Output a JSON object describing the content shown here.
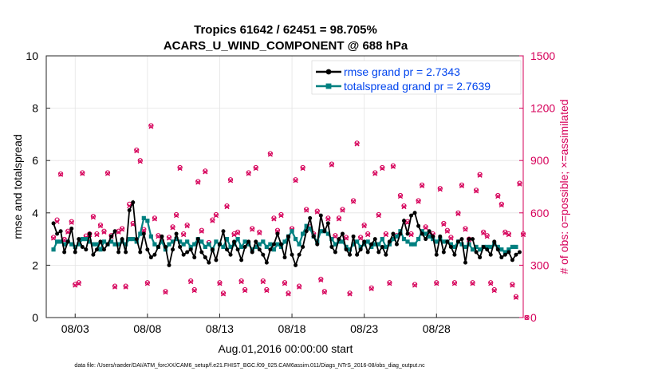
{
  "chart_data": {
    "type": "line",
    "title": [
      "Tropics 61642 / 62451 = 98.705%",
      "ACARS_U_WIND_COMPONENT @ 688 hPa"
    ],
    "xlabel": "Aug.01,2016 00:00:00 start",
    "ylabel_left": "rmse and totalspread",
    "ylabel_right": "# of obs: o=possible; ×=assimilated",
    "xlim": [
      0,
      33
    ],
    "ylim_left": [
      0,
      10
    ],
    "ylim_right": [
      0,
      1500
    ],
    "xticks": [
      2,
      7,
      12,
      17,
      22,
      27
    ],
    "xtick_labels": [
      "08/03",
      "08/08",
      "08/13",
      "08/18",
      "08/23",
      "08/28"
    ],
    "yticks_left": [
      "0",
      "2",
      "4",
      "6",
      "8",
      "10"
    ],
    "yticks_right": [
      "0",
      "300",
      "600",
      "900",
      "1200",
      "1500"
    ],
    "legend": [
      "rmse grand pr = 2.7343",
      "totalspread grand pr = 2.7639"
    ],
    "legend_position": "top-right",
    "grid": true,
    "colors": {
      "rmse": "#000000",
      "spread": "#008080",
      "obs": "#d6005a",
      "legend_text": "#0044ee"
    },
    "series": [
      {
        "name": "rmse",
        "values": [
          3.6,
          3.2,
          3.3,
          2.5,
          2.9,
          3.4,
          2.5,
          3.0,
          2.7,
          2.6,
          3.2,
          2.4,
          2.6,
          2.9,
          2.6,
          2.8,
          3.1,
          3.3,
          2.5,
          3.0,
          2.5,
          4.1,
          4.4,
          3.0,
          2.5,
          3.2,
          2.6,
          2.3,
          2.4,
          2.7,
          3.1,
          2.7,
          2.0,
          2.6,
          3.2,
          2.7,
          2.4,
          2.5,
          2.6,
          2.3,
          3.0,
          2.5,
          2.3,
          2.1,
          2.6,
          2.2,
          2.8,
          3.3,
          2.6,
          2.4,
          2.9,
          2.6,
          2.2,
          2.7,
          2.9,
          2.5,
          2.9,
          2.6,
          2.4,
          2.1,
          2.6,
          2.8,
          3.2,
          2.8,
          2.3,
          3.1,
          2.4,
          2.0,
          2.4,
          2.7,
          3.3,
          3.8,
          3.1,
          2.8,
          3.9,
          3.3,
          3.6,
          2.7,
          2.5,
          3.0,
          3.2,
          2.6,
          2.4,
          3.1,
          2.4,
          2.6,
          2.9,
          2.5,
          2.8,
          3.0,
          2.5,
          2.7,
          2.4,
          2.9,
          3.2,
          2.8,
          3.2,
          3.7,
          3.2,
          3.9,
          4.0,
          3.5,
          3.2,
          3.0,
          3.3,
          3.1,
          2.4,
          3.1,
          2.5,
          2.9,
          2.7,
          2.4,
          2.9,
          3.0,
          2.1,
          3.0,
          3.0,
          2.5,
          2.3,
          2.7,
          2.6,
          2.4,
          2.9,
          2.6,
          2.3,
          2.4,
          2.5,
          2.2,
          2.4,
          2.5
        ]
      },
      {
        "name": "totalspread",
        "values": [
          2.6,
          2.9,
          2.9,
          2.8,
          2.9,
          2.8,
          2.7,
          2.8,
          3.0,
          3.0,
          2.9,
          2.8,
          2.8,
          2.6,
          2.9,
          2.8,
          2.9,
          2.8,
          2.8,
          2.9,
          2.8,
          3.0,
          3.0,
          2.9,
          3.2,
          3.8,
          3.7,
          3.1,
          2.8,
          2.7,
          2.9,
          2.6,
          2.8,
          2.9,
          3.0,
          2.9,
          2.8,
          2.9,
          2.7,
          2.8,
          3.0,
          2.9,
          2.7,
          2.8,
          2.6,
          2.9,
          2.8,
          2.7,
          3.0,
          2.7,
          2.8,
          3.0,
          2.7,
          2.9,
          2.8,
          2.6,
          2.7,
          2.8,
          2.9,
          2.7,
          2.8,
          2.6,
          2.8,
          2.7,
          2.9,
          3.1,
          3.3,
          3.0,
          2.8,
          3.2,
          3.5,
          3.4,
          3.1,
          2.9,
          3.3,
          3.3,
          3.2,
          3.0,
          2.8,
          2.9,
          2.9,
          2.7,
          2.6,
          2.8,
          2.9,
          2.7,
          2.8,
          2.9,
          2.7,
          2.8,
          2.8,
          3.0,
          2.7,
          2.8,
          3.0,
          3.1,
          3.3,
          3.0,
          2.9,
          2.8,
          2.8,
          3.0,
          3.3,
          3.2,
          3.1,
          3.0,
          2.9,
          3.0,
          2.9,
          2.9,
          2.8,
          2.7,
          2.9,
          2.8,
          2.7,
          2.8,
          2.6,
          2.7,
          2.6,
          2.7,
          2.7,
          2.7,
          2.8,
          2.7,
          2.6,
          2.5,
          2.6,
          2.7,
          2.7
        ]
      },
      {
        "name": "obs_possible",
        "values": [
          460,
          560,
          823,
          448,
          495,
          550,
          190,
          200,
          830,
          468,
          480,
          580,
          480,
          530,
          495,
          830,
          470,
          180,
          495,
          510,
          180,
          650,
          540,
          960,
          900,
          505,
          200,
          1100,
          570,
          470,
          440,
          150,
          460,
          520,
          590,
          860,
          480,
          530,
          210,
          160,
          780,
          500,
          840,
          430,
          560,
          590,
          200,
          140,
          640,
          790,
          480,
          490,
          210,
          160,
          830,
          510,
          860,
          490,
          210,
          160,
          940,
          570,
          500,
          590,
          200,
          140,
          510,
          790,
          180,
          860,
          620,
          520,
          480,
          610,
          220,
          150,
          570,
          880,
          470,
          570,
          620,
          460,
          140,
          670,
          1000,
          460,
          530,
          480,
          170,
          830,
          590,
          860,
          480,
          200,
          870,
          470,
          700,
          640,
          550,
          480,
          190,
          670,
          760,
          520,
          470,
          480,
          200,
          740,
          540,
          500,
          460,
          200,
          600,
          760,
          510,
          450,
          200,
          730,
          820,
          490,
          470,
          200,
          160,
          700,
          650,
          490,
          480,
          190,
          120,
          770,
          480,
          0
        ]
      },
      {
        "name": "obs_assimilated",
        "values": [
          455,
          550,
          820,
          445,
          490,
          545,
          185,
          195,
          825,
          460,
          475,
          575,
          475,
          525,
          490,
          825,
          465,
          175,
          490,
          505,
          175,
          640,
          535,
          955,
          895,
          500,
          195,
          1095,
          565,
          465,
          435,
          145,
          455,
          515,
          585,
          855,
          475,
          525,
          205,
          155,
          775,
          495,
          835,
          425,
          555,
          585,
          195,
          135,
          635,
          785,
          475,
          485,
          205,
          155,
          825,
          505,
          855,
          485,
          205,
          155,
          935,
          565,
          495,
          585,
          195,
          135,
          505,
          785,
          175,
          855,
          615,
          515,
          475,
          605,
          215,
          145,
          565,
          875,
          465,
          565,
          615,
          455,
          135,
          665,
          995,
          455,
          525,
          475,
          165,
          825,
          585,
          855,
          475,
          195,
          865,
          465,
          695,
          635,
          545,
          475,
          185,
          665,
          755,
          515,
          465,
          475,
          195,
          735,
          535,
          495,
          455,
          195,
          595,
          755,
          505,
          445,
          195,
          725,
          815,
          485,
          465,
          195,
          155,
          695,
          645,
          485,
          475,
          185,
          115,
          765,
          475,
          0
        ]
      }
    ]
  },
  "footer": {
    "data_file": "data file: /Users/raeder/DAI/ATM_forcXX/CAM6_setup/f.e21.FHIST_BGC.f09_025.CAM6assim.011/Diags_NTrS_2016-08/obs_diag_output.nc"
  }
}
